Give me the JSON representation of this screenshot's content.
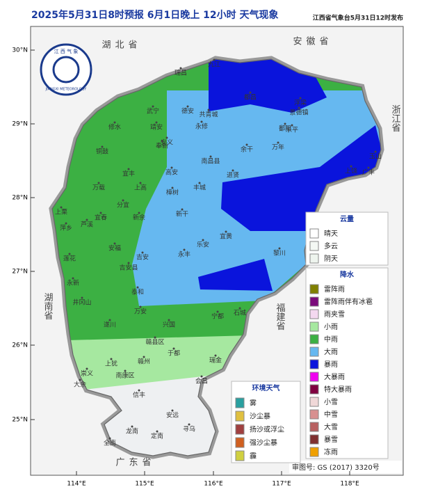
{
  "header": {
    "title": "2025年5月31日8时预报 6月1日晚上 12小时  天气现象",
    "publisher": "江西省气象台5月31日12时发布"
  },
  "axes": {
    "lat_labels": [
      "30°N",
      "29°N",
      "28°N",
      "27°N",
      "26°N",
      "25°N"
    ],
    "lon_labels": [
      "114°E",
      "115°E",
      "116°E",
      "117°E",
      "118°E"
    ]
  },
  "logo": {
    "top": "江 西 气 象",
    "bottom": "JIANGXI METEOROLOGY"
  },
  "provinces": [
    "湖北省",
    "安徽省",
    "浙江省",
    "湖南省",
    "福建省",
    "广东省"
  ],
  "cities": [
    "瑞昌",
    "九江",
    "武宁",
    "修水",
    "德安",
    "共青城",
    "永修",
    "都昌",
    "鄱阳",
    "浮梁",
    "景德镇",
    "乐平",
    "万年",
    "余干",
    "安义",
    "靖安",
    "奉新",
    "南昌县",
    "进贤",
    "铜鼓",
    "宜丰",
    "上高",
    "高安",
    "丰城",
    "万载",
    "分宜",
    "新余",
    "宜春",
    "上栗",
    "芦溪",
    "萍乡",
    "新干",
    "樟树",
    "安福",
    "吉安",
    "吉安县",
    "永丰",
    "乐安",
    "宜黄",
    "黎川",
    "上饶",
    "广丰",
    "玉山",
    "永新",
    "莲花",
    "井冈山",
    "遂川",
    "泰和",
    "万安",
    "兴国",
    "宁都",
    "石城",
    "赣县区",
    "于都",
    "瑞金",
    "会昌",
    "上犹",
    "南康区",
    "赣州",
    "崇义",
    "大余",
    "信丰",
    "安远",
    "寻乌",
    "龙南",
    "定南",
    "全南"
  ],
  "legend_cloud": {
    "title": "云量",
    "items": [
      {
        "label": "晴天",
        "color": "#ffffff"
      },
      {
        "label": "多云",
        "color": "#f4f8f4"
      },
      {
        "label": "阴天",
        "color": "#eef4ee"
      }
    ]
  },
  "legend_precip": {
    "title": "降水",
    "items": [
      {
        "label": "雷阵雨",
        "color": "#808000"
      },
      {
        "label": "雷阵雨伴有冰雹",
        "color": "#7a0a7a"
      },
      {
        "label": "雨夹雪",
        "color": "#f4d8f0"
      },
      {
        "label": "小雨",
        "color": "#a6e8a0"
      },
      {
        "label": "中雨",
        "color": "#3cb043"
      },
      {
        "label": "大雨",
        "color": "#66b8f0"
      },
      {
        "label": "暴雨",
        "color": "#0a14dc"
      },
      {
        "label": "大暴雨",
        "color": "#f000f0"
      },
      {
        "label": "特大暴雨",
        "color": "#800040"
      },
      {
        "label": "小雪",
        "color": "#f0d8d8"
      },
      {
        "label": "中雪",
        "color": "#d89090"
      },
      {
        "label": "大雪",
        "color": "#b86060"
      },
      {
        "label": "暴雪",
        "color": "#803030"
      },
      {
        "label": "冻雨",
        "color": "#f0a000"
      }
    ]
  },
  "legend_env": {
    "title": "环境天气",
    "items": [
      {
        "label": "雾",
        "color": "#2aa0a0"
      },
      {
        "label": "沙尘暴",
        "color": "#e0c040"
      },
      {
        "label": "扬沙或浮尘",
        "color": "#a04040"
      },
      {
        "label": "强沙尘暴",
        "color": "#d06020"
      },
      {
        "label": "霾",
        "color": "#d0d040"
      }
    ]
  },
  "footer": {
    "approval": "审图号: GS (2017) 3320号"
  }
}
